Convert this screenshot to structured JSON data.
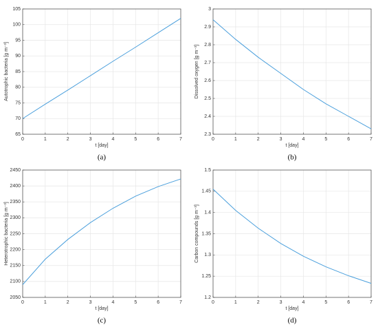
{
  "chart_data": [
    {
      "type": "line",
      "panel": "(a)",
      "xlabel": "t [day]",
      "ylabel": "Autotrophic bacteria [g m⁻³]",
      "x": [
        0,
        1,
        2,
        3,
        4,
        5,
        6,
        7
      ],
      "values": [
        70,
        74.6,
        79.1,
        83.7,
        88.3,
        92.8,
        97.4,
        102
      ],
      "color": "#4a9fdc",
      "xlim": [
        0,
        7
      ],
      "xticks": [
        0,
        1,
        2,
        3,
        4,
        5,
        6,
        7
      ],
      "ylim": [
        65,
        105
      ],
      "yticks": [
        65,
        70,
        75,
        80,
        85,
        90,
        95,
        100,
        105
      ],
      "grid": true
    },
    {
      "type": "line",
      "panel": "(b)",
      "xlabel": "t [day]",
      "ylabel": "Dissolved oxygen [g m⁻³]",
      "x": [
        0,
        1,
        2,
        3,
        4,
        5,
        6,
        7
      ],
      "values": [
        2.94,
        2.83,
        2.73,
        2.64,
        2.55,
        2.47,
        2.4,
        2.33
      ],
      "color": "#4a9fdc",
      "xlim": [
        0,
        7
      ],
      "xticks": [
        0,
        1,
        2,
        3,
        4,
        5,
        6,
        7
      ],
      "ylim": [
        2.3,
        3
      ],
      "yticks": [
        2.3,
        2.4,
        2.5,
        2.6,
        2.7,
        2.8,
        2.9,
        3
      ],
      "grid": true
    },
    {
      "type": "line",
      "panel": "(c)",
      "xlabel": "t [day]",
      "ylabel": "Heterotrophic bacteria [g m⁻³]",
      "x": [
        0,
        1,
        2,
        3,
        4,
        5,
        6,
        7
      ],
      "values": [
        2090,
        2170,
        2232,
        2285,
        2330,
        2368,
        2398,
        2422
      ],
      "color": "#4a9fdc",
      "xlim": [
        0,
        7
      ],
      "xticks": [
        0,
        1,
        2,
        3,
        4,
        5,
        6,
        7
      ],
      "ylim": [
        2050,
        2450
      ],
      "yticks": [
        2050,
        2100,
        2150,
        2200,
        2250,
        2300,
        2350,
        2400,
        2450
      ],
      "grid": true
    },
    {
      "type": "line",
      "panel": "(d)",
      "xlabel": "t [day]",
      "ylabel": "Carbon compounds [g m⁻³]",
      "x": [
        0,
        1,
        2,
        3,
        4,
        5,
        6,
        7
      ],
      "values": [
        1.455,
        1.405,
        1.363,
        1.327,
        1.297,
        1.272,
        1.251,
        1.233
      ],
      "color": "#4a9fdc",
      "xlim": [
        0,
        7
      ],
      "xticks": [
        0,
        1,
        2,
        3,
        4,
        5,
        6,
        7
      ],
      "ylim": [
        1.2,
        1.5
      ],
      "yticks": [
        1.2,
        1.25,
        1.3,
        1.35,
        1.4,
        1.45,
        1.5
      ],
      "grid": true
    }
  ]
}
